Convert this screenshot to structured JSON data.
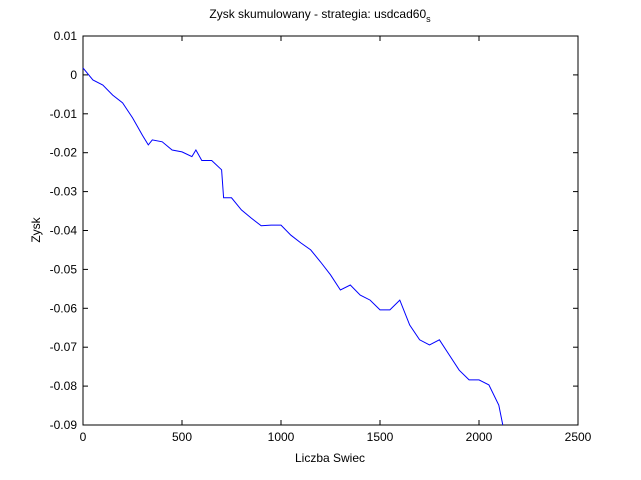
{
  "chart_data": {
    "type": "line",
    "title": "Zysk skumulowany - strategia: usdcad60",
    "title_subscript": "s",
    "x_label": "Liczba Swiec",
    "y_label": "Zysk",
    "x": [
      0,
      50,
      100,
      150,
      200,
      250,
      300,
      330,
      350,
      400,
      450,
      500,
      550,
      570,
      600,
      650,
      700,
      710,
      750,
      800,
      850,
      900,
      950,
      1000,
      1050,
      1100,
      1150,
      1200,
      1250,
      1300,
      1350,
      1400,
      1450,
      1500,
      1550,
      1600,
      1650,
      1700,
      1750,
      1800,
      1850,
      1900,
      1950,
      2000,
      2050,
      2100,
      2120
    ],
    "series": [
      {
        "color": "#0000ff",
        "values": [
          0.0018,
          -0.0013,
          -0.0026,
          -0.0052,
          -0.0072,
          -0.011,
          -0.0155,
          -0.018,
          -0.0167,
          -0.0172,
          -0.0193,
          -0.0198,
          -0.021,
          -0.0193,
          -0.022,
          -0.022,
          -0.0244,
          -0.0316,
          -0.0316,
          -0.0347,
          -0.0368,
          -0.0388,
          -0.0386,
          -0.0386,
          -0.0412,
          -0.0432,
          -0.045,
          -0.0481,
          -0.0514,
          -0.0553,
          -0.054,
          -0.0566,
          -0.0579,
          -0.0604,
          -0.0604,
          -0.0579,
          -0.0643,
          -0.0681,
          -0.0694,
          -0.0681,
          -0.072,
          -0.0759,
          -0.0784,
          -0.0784,
          -0.0797,
          -0.0849,
          -0.09
        ]
      }
    ],
    "xlim": [
      0,
      2500
    ],
    "xticks": [
      0,
      500,
      1000,
      1500,
      2000,
      2500
    ],
    "ylim": [
      -0.09,
      0.01
    ],
    "yticks": [
      0.01,
      0,
      -0.01,
      -0.02,
      -0.03,
      -0.04,
      -0.05,
      -0.06,
      -0.07,
      -0.08,
      -0.09
    ]
  }
}
